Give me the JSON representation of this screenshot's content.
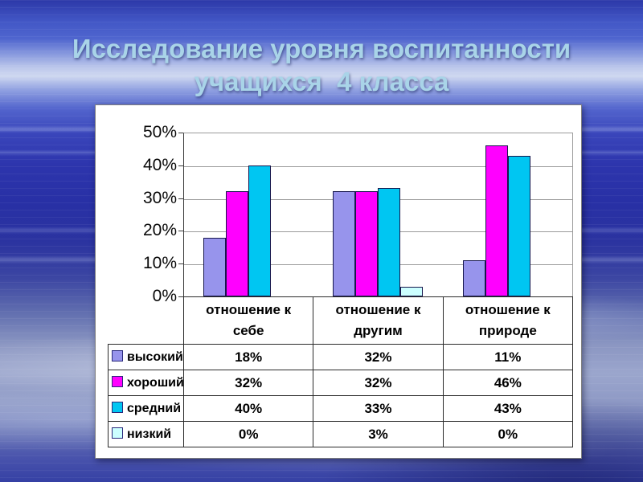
{
  "slide": {
    "title_line1": "Исследование уровня воспитанности",
    "title_line2": "учащихся  4 класса",
    "title_color": "#A9D4E8",
    "panel_background": "#FFFFFF"
  },
  "chart_data": {
    "type": "bar",
    "title": "",
    "categories": [
      "отношение к себе",
      "отношение к другим",
      "отношение к природе"
    ],
    "series": [
      {
        "key": "high",
        "name": "высокий",
        "color": "#9794EC",
        "values": [
          18,
          32,
          11
        ]
      },
      {
        "key": "good",
        "name": "хороший",
        "color": "#FF00FF",
        "values": [
          32,
          32,
          46
        ]
      },
      {
        "key": "medium",
        "name": "средний",
        "color": "#00C6F2",
        "values": [
          40,
          33,
          43
        ]
      },
      {
        "key": "low",
        "name": "низкий",
        "color": "#CCFFFF",
        "values": [
          0,
          3,
          0
        ]
      }
    ],
    "value_suffix": "%",
    "ylim": [
      0,
      50
    ],
    "ytick_step": 10,
    "yticks_top_down": [
      "50%",
      "40%",
      "30%",
      "20%",
      "10%",
      "0%"
    ],
    "grid": true,
    "legend_position": "data-table-left-column",
    "data_table_shown": true
  }
}
